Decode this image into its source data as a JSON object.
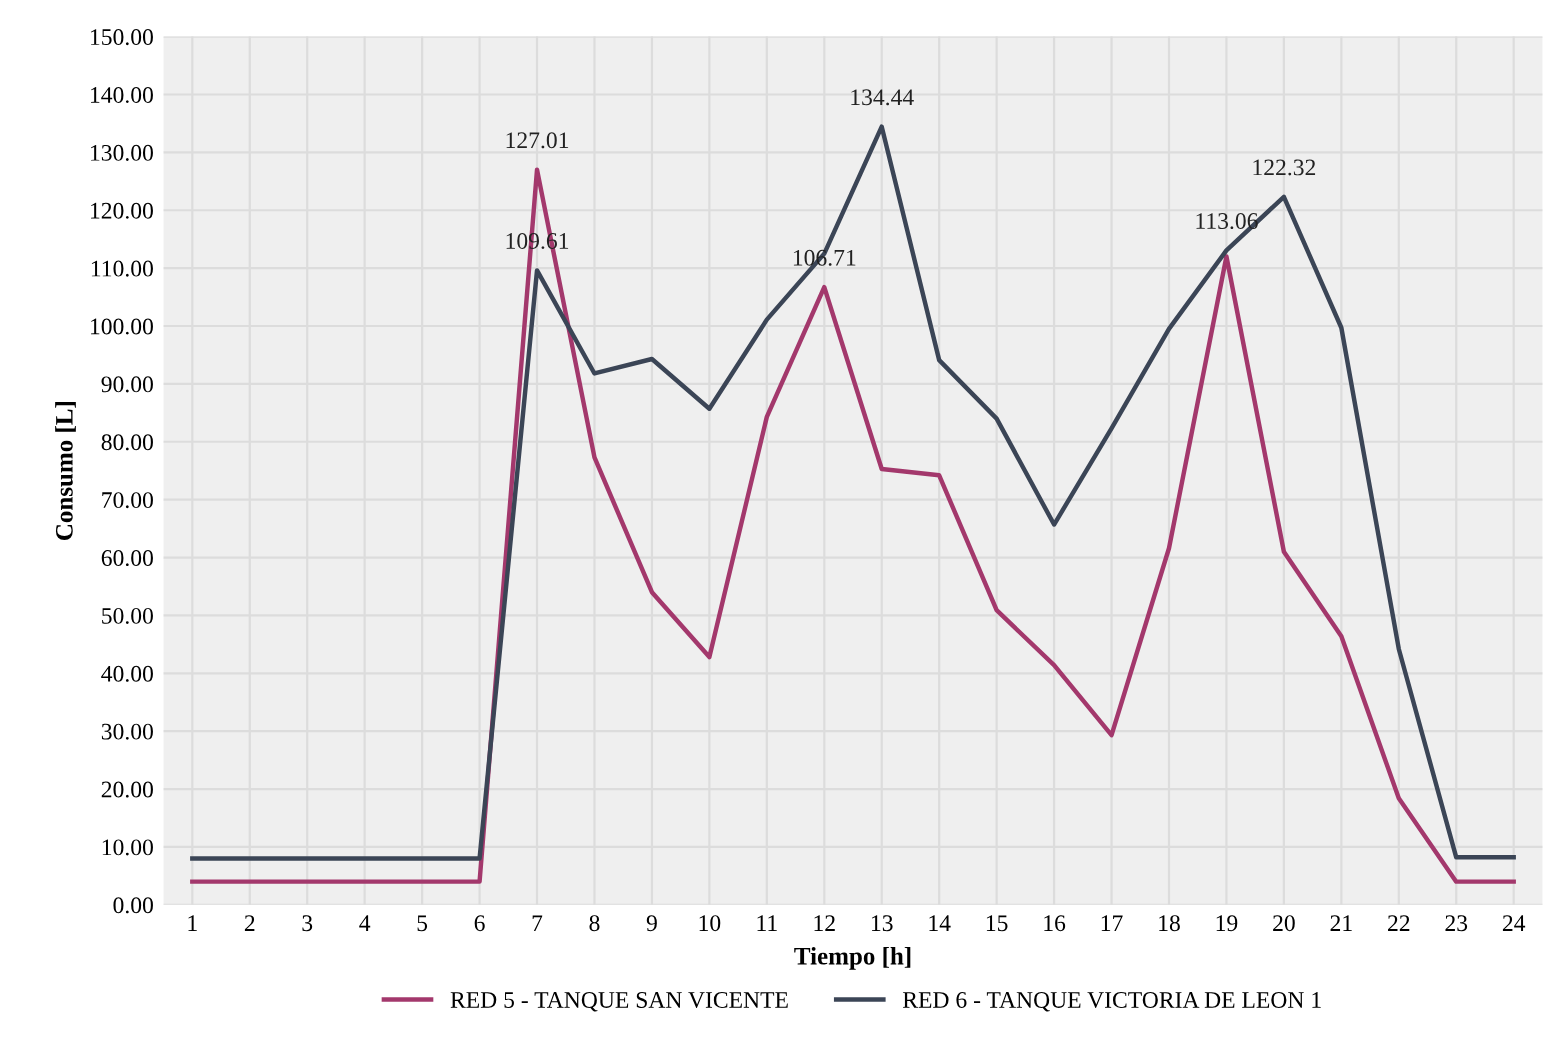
{
  "chart_data": {
    "type": "line",
    "xlabel": "Tiempo [h]",
    "ylabel": "Consumo [L]",
    "categories": [
      "1",
      "2",
      "3",
      "4",
      "5",
      "6",
      "7",
      "8",
      "9",
      "10",
      "11",
      "12",
      "13",
      "14",
      "15",
      "16",
      "17",
      "18",
      "19",
      "20",
      "21",
      "22",
      "23",
      "24"
    ],
    "series": [
      {
        "name": "RED 5 - TANQUE SAN VICENTE",
        "color": "#a3386c",
        "values": [
          4.0,
          4.0,
          4.0,
          4.0,
          4.0,
          4.0,
          127.01,
          77.3,
          54.0,
          42.8,
          84.3,
          106.71,
          75.3,
          74.2,
          50.9,
          41.4,
          29.3,
          61.6,
          112.0,
          61.0,
          46.4,
          18.4,
          4.0,
          4.0
        ],
        "value_labels": [
          null,
          null,
          null,
          null,
          null,
          null,
          "127.01",
          null,
          null,
          null,
          null,
          "106.71",
          null,
          null,
          null,
          null,
          null,
          null,
          null,
          null,
          null,
          null,
          null,
          null
        ]
      },
      {
        "name": "RED 6 - TANQUE VICTORIA DE LEON 1",
        "color": "#3b4556",
        "values": [
          8.0,
          8.0,
          8.0,
          8.0,
          8.0,
          8.0,
          109.61,
          91.8,
          94.3,
          85.7,
          101.1,
          112.5,
          134.44,
          94.1,
          84.0,
          65.7,
          82.3,
          99.5,
          113.06,
          122.32,
          99.7,
          44.2,
          8.2,
          8.2
        ],
        "value_labels": [
          null,
          null,
          null,
          null,
          null,
          null,
          "109.61",
          null,
          null,
          null,
          null,
          null,
          "134.44",
          null,
          null,
          null,
          null,
          null,
          "113.06",
          "122.32",
          null,
          null,
          null,
          null
        ]
      }
    ],
    "ylim": [
      0,
      150
    ],
    "yticks": [
      {
        "value": 0,
        "label": "0.00"
      },
      {
        "value": 10,
        "label": "10.00"
      },
      {
        "value": 20,
        "label": "20.00"
      },
      {
        "value": 30,
        "label": "30.00"
      },
      {
        "value": 40,
        "label": "40.00"
      },
      {
        "value": 50,
        "label": "50.00"
      },
      {
        "value": 60,
        "label": "60.00"
      },
      {
        "value": 70,
        "label": "70.00"
      },
      {
        "value": 80,
        "label": "80.00"
      },
      {
        "value": 90,
        "label": "90.00"
      },
      {
        "value": 100,
        "label": "100.00"
      },
      {
        "value": 110,
        "label": "110.00"
      },
      {
        "value": 120,
        "label": "120.00"
      },
      {
        "value": 130,
        "label": "130.00"
      },
      {
        "value": 140,
        "label": "140.00"
      },
      {
        "value": 150,
        "label": "150.00"
      }
    ],
    "grid": true,
    "legend": "bottom",
    "marker": "none",
    "line_style": "solid"
  }
}
